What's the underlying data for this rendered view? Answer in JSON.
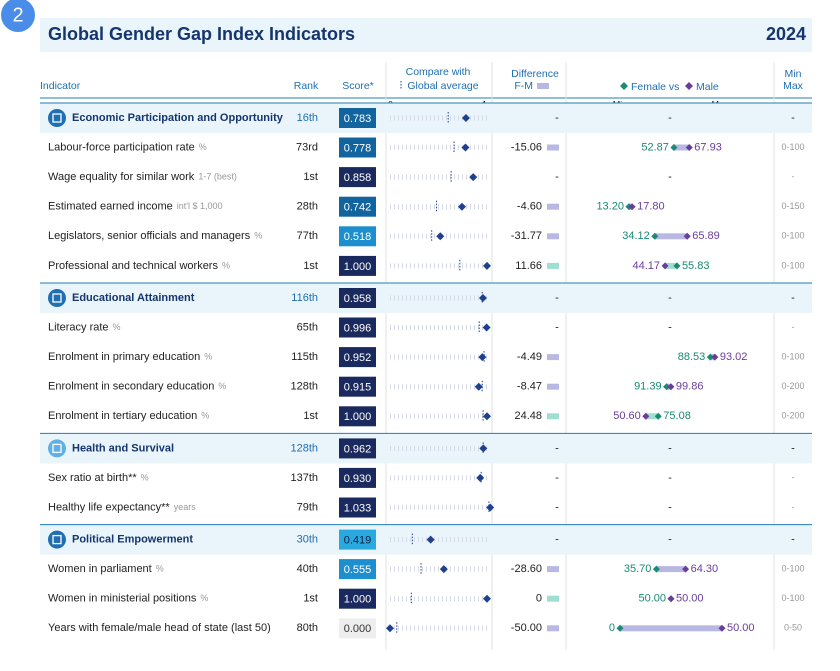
{
  "badge": "2",
  "header": {
    "title": "Global Gender Gap Index Indicators",
    "year": "2024"
  },
  "columns": {
    "indicator": "Indicator",
    "rank": "Rank",
    "score": "Score*",
    "compare": [
      "Compare with",
      "Global average"
    ],
    "difference": [
      "Difference",
      "F-M"
    ],
    "female": "Female vs",
    "male": "Male",
    "range": [
      "Min",
      "Max"
    ]
  },
  "scales": {
    "compare": [
      "0",
      "1"
    ],
    "female_male": [
      "Min",
      "Max"
    ]
  },
  "sections": [
    {
      "title": "Economic Participation and Opportunity",
      "rank": "16th",
      "score": "0.783",
      "global_average": 0.6,
      "difference": "-",
      "female_male": "-",
      "range": "-",
      "rows": [
        {
          "label": "Labour-force participation rate",
          "unit": "%",
          "rank": "73rd",
          "score": "0.778",
          "global_average": 0.66,
          "difference": "-15.06",
          "female": "52.87",
          "male": "67.93",
          "range": "0-100"
        },
        {
          "label": "Wage equality for similar work",
          "unit": "1-7 (best)",
          "rank": "1st",
          "score": "0.858",
          "global_average": 0.63,
          "difference": "-",
          "female_male": "-",
          "range": "-"
        },
        {
          "label": "Estimated earned income",
          "unit": "int'l $ 1,000",
          "rank": "28th",
          "score": "0.742",
          "global_average": 0.48,
          "difference": "-4.60",
          "female": "13.20",
          "male": "17.80",
          "range": "0-150"
        },
        {
          "label": "Legislators, senior officials and managers",
          "unit": "%",
          "rank": "77th",
          "score": "0.518",
          "global_average": 0.43,
          "difference": "-31.77",
          "female": "34.12",
          "male": "65.89",
          "range": "0-100"
        },
        {
          "label": "Professional and technical workers",
          "unit": "%",
          "rank": "1st",
          "score": "1.000",
          "global_average": 0.72,
          "difference": "11.66",
          "female": "55.83",
          "male": "44.17",
          "range": "0-100"
        }
      ]
    },
    {
      "title": "Educational Attainment",
      "rank": "116th",
      "score": "0.958",
      "global_average": 0.95,
      "difference": "-",
      "female_male": "-",
      "range": "-",
      "rows": [
        {
          "label": "Literacy rate",
          "unit": "%",
          "rank": "65th",
          "score": "0.996",
          "global_average": 0.92,
          "difference": "-",
          "female_male": "-",
          "range": "-"
        },
        {
          "label": "Enrolment in primary education",
          "unit": "%",
          "rank": "115th",
          "score": "0.952",
          "global_average": 0.97,
          "difference": "-4.49",
          "female": "88.53",
          "male": "93.02",
          "range": "0-100"
        },
        {
          "label": "Enrolment in secondary education",
          "unit": "%",
          "rank": "128th",
          "score": "0.915",
          "global_average": 0.95,
          "difference": "-8.47",
          "female": "91.39",
          "male": "99.86",
          "range": "0-200"
        },
        {
          "label": "Enrolment in tertiary education",
          "unit": "%",
          "rank": "1st",
          "score": "1.000",
          "global_average": 0.96,
          "difference": "24.48",
          "female": "75.08",
          "male": "50.60",
          "range": "0-200"
        }
      ]
    },
    {
      "title": "Health and Survival",
      "rank": "128th",
      "score": "0.962",
      "global_average": 0.96,
      "difference": "-",
      "female_male": "-",
      "range": "-",
      "rows": [
        {
          "label": "Sex ratio at birth**",
          "unit": "%",
          "rank": "137th",
          "score": "0.930",
          "global_average": 0.94,
          "difference": "-",
          "female_male": "-",
          "range": "-"
        },
        {
          "label": "Healthy life expectancy**",
          "unit": "years",
          "rank": "79th",
          "score": "1.033",
          "global_average": 1.02,
          "difference": "-",
          "female_male": "-",
          "range": "-"
        }
      ]
    },
    {
      "title": "Political Empowerment",
      "rank": "30th",
      "score": "0.419",
      "global_average": 0.23,
      "difference": "-",
      "female_male": "-",
      "range": "-",
      "rows": [
        {
          "label": "Women in parliament",
          "unit": "%",
          "rank": "40th",
          "score": "0.555",
          "global_average": 0.32,
          "difference": "-28.60",
          "female": "35.70",
          "male": "64.30",
          "range": "0-100"
        },
        {
          "label": "Women in ministerial positions",
          "unit": "%",
          "rank": "1st",
          "score": "1.000",
          "global_average": 0.22,
          "difference": "0",
          "female": "50.00",
          "male": "50.00",
          "range": "0-100"
        },
        {
          "label": "Years with female/male head of state (last 50)",
          "unit": "",
          "rank": "80th",
          "score": "0.000",
          "global_average": 0.07,
          "difference": "-50.00",
          "female": "0",
          "male": "50.00",
          "range": "0-50"
        }
      ]
    }
  ]
}
